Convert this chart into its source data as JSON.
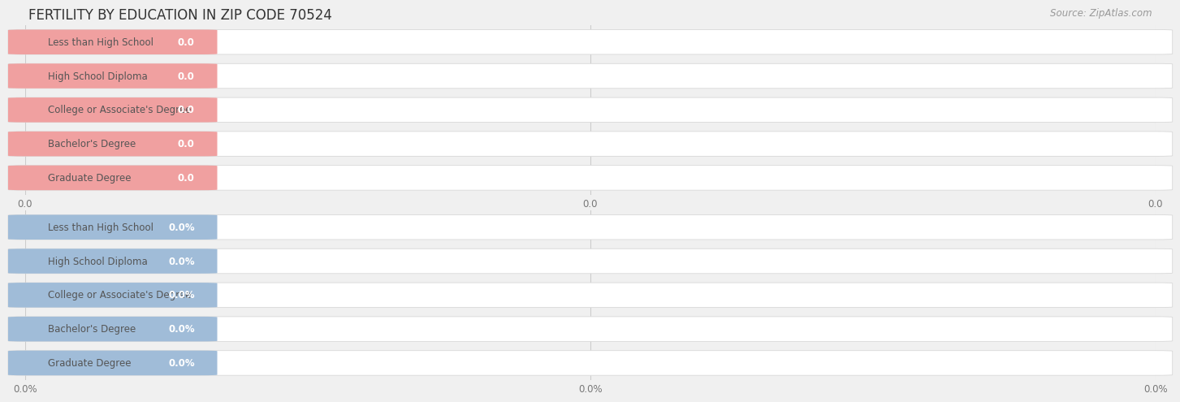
{
  "title": "FERTILITY BY EDUCATION IN ZIP CODE 70524",
  "source": "Source: ZipAtlas.com",
  "categories": [
    "Less than High School",
    "High School Diploma",
    "College or Associate's Degree",
    "Bachelor's Degree",
    "Graduate Degree"
  ],
  "values_top": [
    0.0,
    0.0,
    0.0,
    0.0,
    0.0
  ],
  "values_bottom": [
    0.0,
    0.0,
    0.0,
    0.0,
    0.0
  ],
  "top_bar_color": "#f0a0a0",
  "top_bg_color": "#faeaea",
  "bottom_bar_color": "#a0bcd8",
  "bottom_bg_color": "#dce8f4",
  "top_tick_labels": [
    "0.0",
    "0.0",
    "0.0"
  ],
  "bottom_tick_labels": [
    "0.0%",
    "0.0%",
    "0.0%"
  ],
  "bg_color": "#f0f0f0",
  "row_bg_color": "#ffffff",
  "grid_color": "#cccccc",
  "title_fontsize": 12,
  "label_fontsize": 8.5,
  "tick_fontsize": 8.5,
  "source_fontsize": 8.5,
  "title_color": "#333333",
  "source_color": "#999999",
  "label_text_color": "#555555",
  "value_text_color": "#ffffff",
  "tick_color": "#777777"
}
